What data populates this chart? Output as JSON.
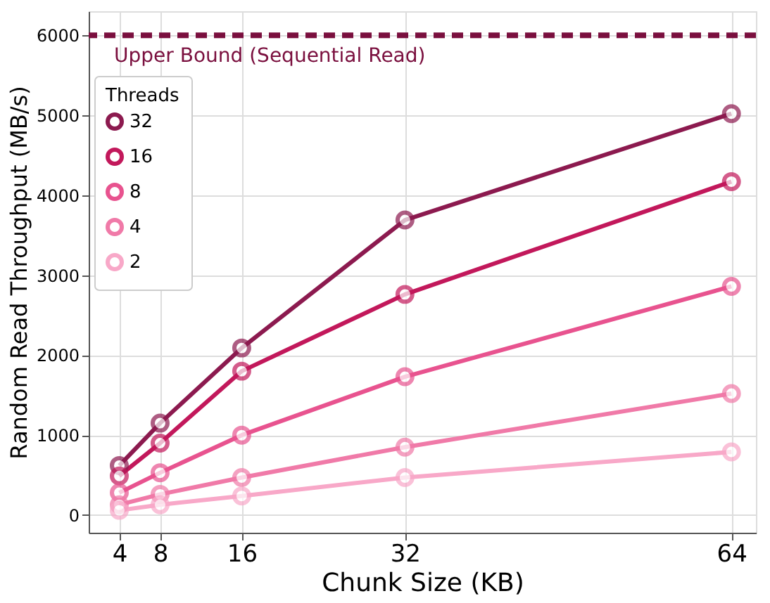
{
  "chart_data": {
    "type": "line",
    "xlabel": "Chunk Size (KB)",
    "ylabel": "Random Read Throughput (MB/s)",
    "legend_title": "Threads",
    "x": [
      4,
      8,
      16,
      32,
      64
    ],
    "series": [
      {
        "name": "32",
        "color": "#8c1a4f",
        "values": [
          620,
          1150,
          2090,
          3690,
          5020
        ]
      },
      {
        "name": "16",
        "color": "#c2185b",
        "values": [
          490,
          900,
          1800,
          2760,
          4170
        ]
      },
      {
        "name": "8",
        "color": "#e8538f",
        "values": [
          280,
          530,
          1000,
          1730,
          2860
        ]
      },
      {
        "name": "4",
        "color": "#f07aa8",
        "values": [
          130,
          260,
          470,
          850,
          1520
        ]
      },
      {
        "name": "2",
        "color": "#f8a8c8",
        "values": [
          60,
          130,
          240,
          470,
          790
        ]
      }
    ],
    "xlim": [
      1,
      66.4
    ],
    "xticks": [
      4,
      8,
      16,
      32,
      64
    ],
    "ylim": [
      -220,
      6300
    ],
    "yticks": [
      0,
      1000,
      2000,
      3000,
      4000,
      5000,
      6000
    ],
    "ref_lines": [
      {
        "axis": "y",
        "value": 6000,
        "label": "Upper Bound (Sequential Read)",
        "color": "#7a0f3e",
        "line_style": "dashed"
      }
    ],
    "grid": true,
    "legend": "top left",
    "marker": "circle",
    "line_style": "solid"
  }
}
